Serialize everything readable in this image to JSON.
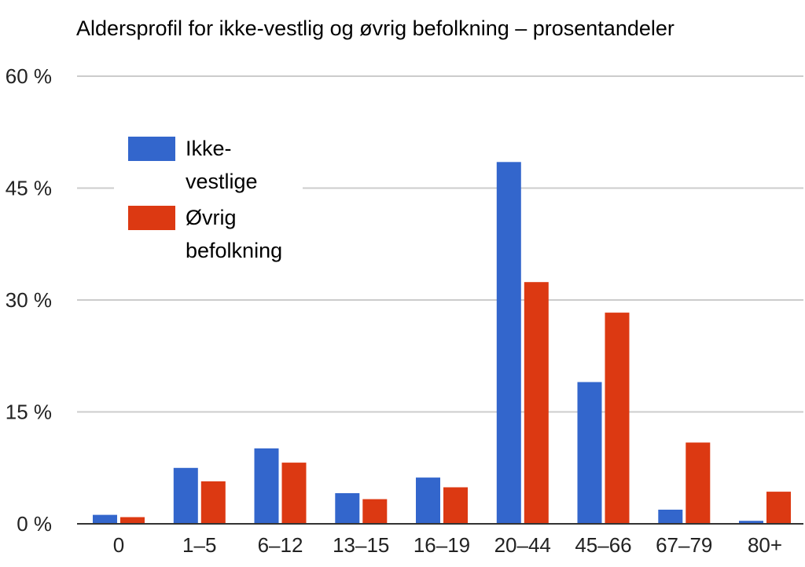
{
  "chart_data": {
    "type": "bar",
    "title": "Aldersprofil for ikke-vestlig og øvrig befolkning – prosentandeler",
    "xlabel": "",
    "ylabel": "",
    "ylim": [
      0,
      60
    ],
    "yticks": [
      0,
      15,
      30,
      45,
      60
    ],
    "ytick_labels": [
      "0 %",
      "15 %",
      "30 %",
      "45 %",
      "60 %"
    ],
    "categories": [
      "0",
      "1–5",
      "6–12",
      "13–15",
      "16–19",
      "20–44",
      "45–66",
      "67–79",
      "80+"
    ],
    "series": [
      {
        "name": "Ikke-vestlige",
        "legend_lines": [
          "Ikke-",
          "vestlige"
        ],
        "color": "#3366cc",
        "values": [
          1.2,
          7.5,
          10.1,
          4.1,
          6.2,
          48.5,
          19.0,
          1.9,
          0.4
        ]
      },
      {
        "name": "Øvrig befolkning",
        "legend_lines": [
          "Øvrig",
          "befolkning"
        ],
        "color": "#dc3912",
        "values": [
          0.9,
          5.7,
          8.2,
          3.3,
          4.9,
          32.4,
          28.3,
          10.9,
          4.3
        ]
      }
    ],
    "grid": true,
    "legend_position": "top-left"
  }
}
